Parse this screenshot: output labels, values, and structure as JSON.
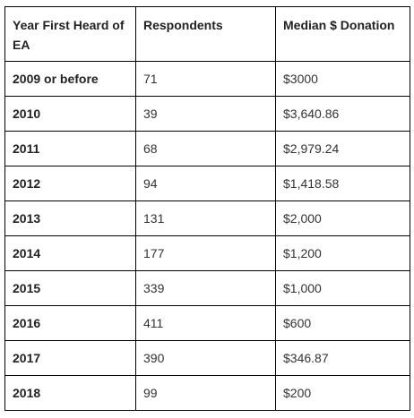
{
  "table": {
    "headers": [
      "Year First Heard of EA",
      "Respondents",
      "Median $ Donation"
    ],
    "rows": [
      {
        "year": "2009 or before",
        "respondents": "71",
        "median": "$3000"
      },
      {
        "year": "2010",
        "respondents": "39",
        "median": "$3,640.86"
      },
      {
        "year": "2011",
        "respondents": "68",
        "median": "$2,979.24"
      },
      {
        "year": "2012",
        "respondents": "94",
        "median": "$1,418.58"
      },
      {
        "year": "2013",
        "respondents": "131",
        "median": "$2,000"
      },
      {
        "year": "2014",
        "respondents": "177",
        "median": "$1,200"
      },
      {
        "year": "2015",
        "respondents": "339",
        "median": "$1,000"
      },
      {
        "year": "2016",
        "respondents": "411",
        "median": "$600"
      },
      {
        "year": "2017",
        "respondents": "390",
        "median": "$346.87"
      },
      {
        "year": "2018",
        "respondents": "99",
        "median": "$200"
      }
    ]
  }
}
